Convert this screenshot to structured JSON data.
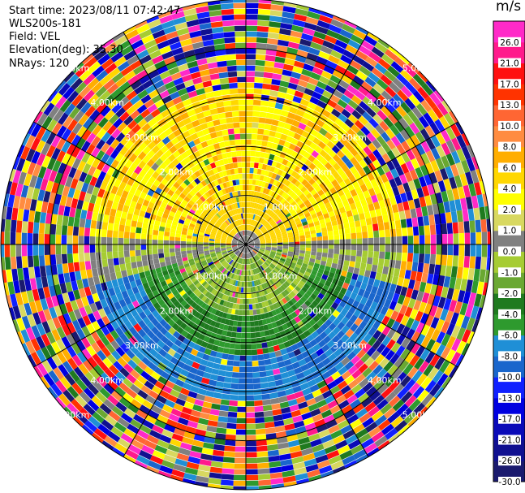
{
  "header": {
    "start_time": "Start time: 2023/08/11 07:42:47",
    "instrument": "WLS200s-181",
    "field": "Field: VEL",
    "elevation": "Elevation(deg): 35.30",
    "nrays": "NRays: 120"
  },
  "chart_data": {
    "type": "heatmap",
    "projection": "polar (PPI)",
    "field": "VEL",
    "units": "m/s",
    "range_rings_km": [
      1.0,
      2.0,
      3.0,
      4.0,
      5.0
    ],
    "range_labels": [
      "1.00km",
      "2.00km",
      "3.00km",
      "4.00km",
      "5.00km"
    ],
    "nrays": 120,
    "colorbar": {
      "title": "m/s",
      "levels": [
        -30.0,
        -26.0,
        -21.0,
        -17.0,
        -13.0,
        -10.0,
        -8.0,
        -6.0,
        -4.0,
        -2.0,
        -1.0,
        0.0,
        1.0,
        2.0,
        4.0,
        6.0,
        8.0,
        10.0,
        13.0,
        17.0,
        21.0,
        26.0
      ],
      "labels": [
        "-30.0",
        "-26.0",
        "-21.0",
        "-17.0",
        "-13.0",
        "-10.0",
        "-8.0",
        "-6.0",
        "-4.0",
        "-2.0",
        "-1.0",
        "0.0",
        "1.0",
        "2.0",
        "4.0",
        "6.0",
        "8.0",
        "10.0",
        "13.0",
        "17.0",
        "21.0",
        "26.0"
      ],
      "colors": [
        "#1a1a6e",
        "#101090",
        "#0a0ab8",
        "#0000e0",
        "#1020ff",
        "#1a66cc",
        "#1f8fd6",
        "#2e9a2e",
        "#1f7a1f",
        "#6aa832",
        "#a6cc33",
        "#808080",
        "#d8d860",
        "#ffff00",
        "#ffd700",
        "#ffae00",
        "#ff8c40",
        "#ff6633",
        "#ff3300",
        "#ff1010",
        "#ff1a8c",
        "#ff2ac8"
      ]
    },
    "grid": true
  }
}
